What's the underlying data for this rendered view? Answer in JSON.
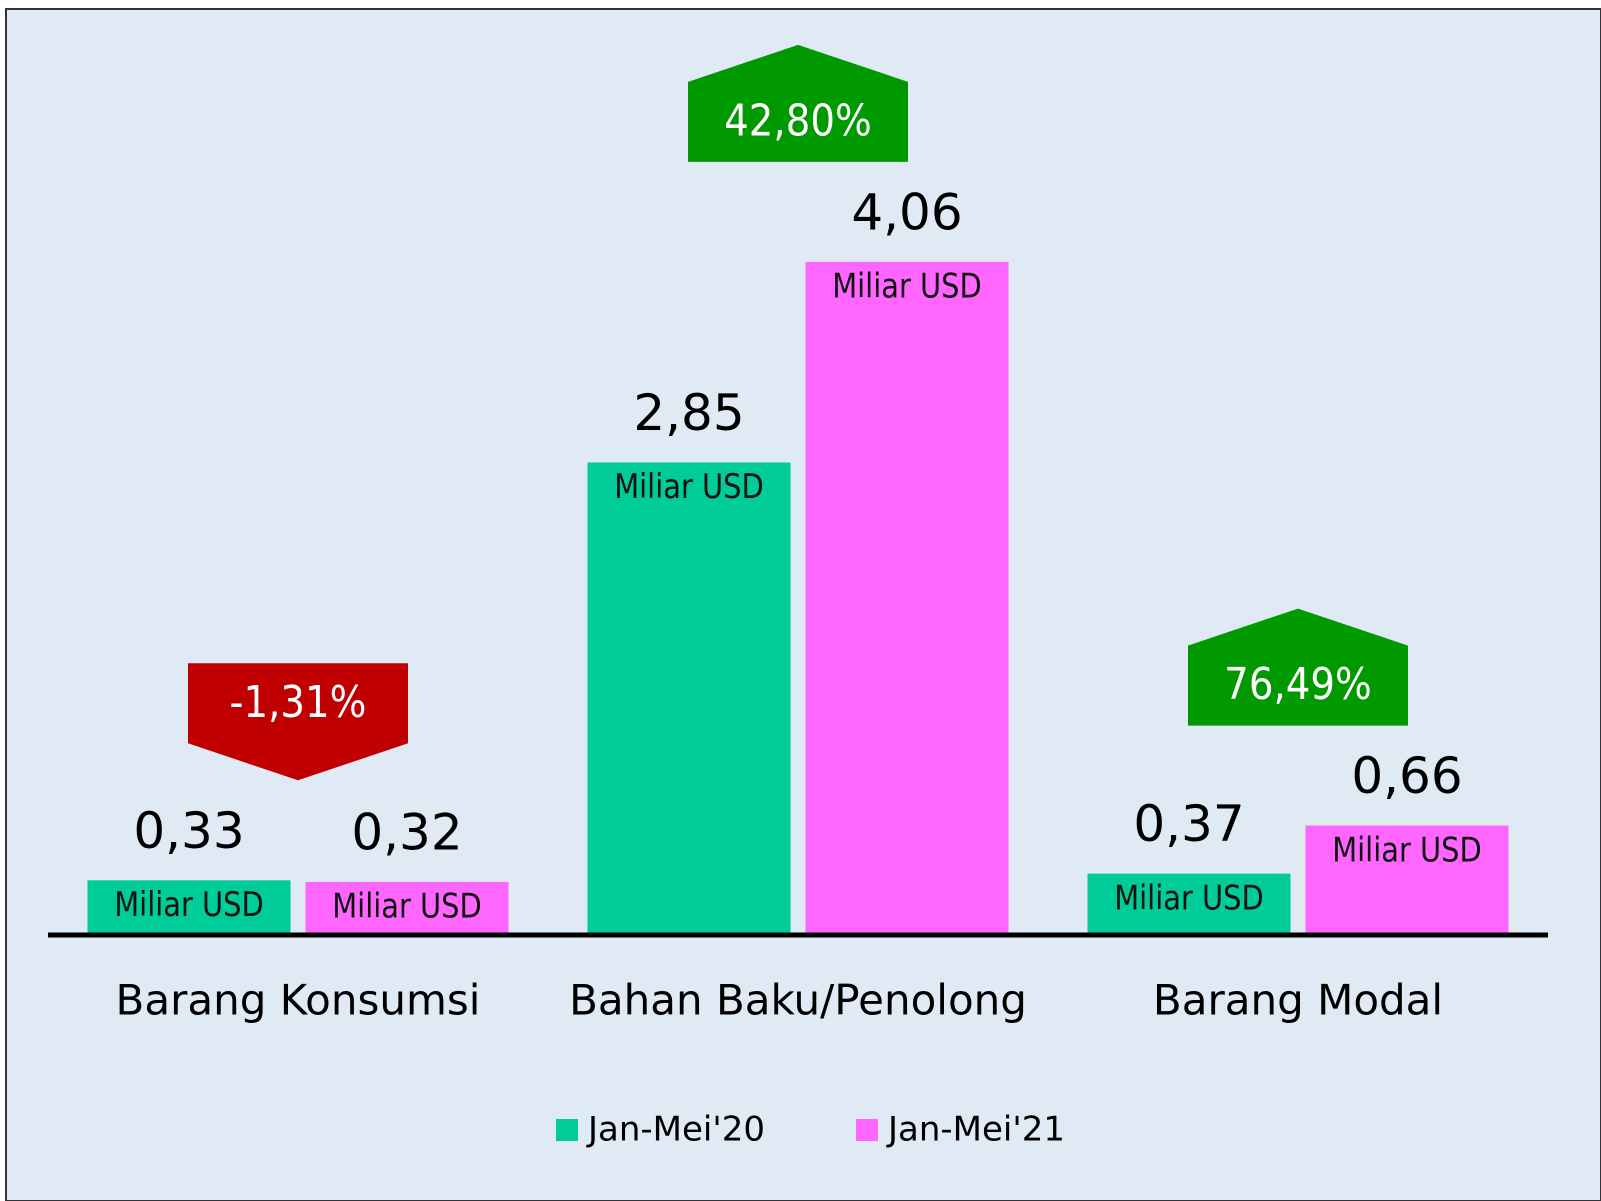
{
  "chart_data": {
    "type": "bar",
    "categories": [
      "Barang Konsumsi",
      "Bahan Baku/Penolong",
      "Barang Modal"
    ],
    "series": [
      {
        "name": "Jan-Mei'20",
        "color": "#00cc99",
        "values": [
          0.33,
          2.85,
          0.37
        ],
        "value_labels": [
          "0,33",
          "2,85",
          "0,37"
        ]
      },
      {
        "name": "Jan-Mei'21",
        "color": "#ff66ff",
        "values": [
          0.32,
          4.06,
          0.66
        ],
        "value_labels": [
          "0,32",
          "4,06",
          "0,66"
        ]
      }
    ],
    "unit_label": "Miliar USD",
    "annotations": [
      {
        "label": "-1,31%",
        "value": -1.31,
        "color": "#c00000"
      },
      {
        "label": "42,80%",
        "value": 42.8,
        "color": "#009900"
      },
      {
        "label": "76,49%",
        "value": 76.49,
        "color": "#009900"
      }
    ],
    "ylim": [
      0,
      5
    ],
    "legend": "bottom"
  }
}
